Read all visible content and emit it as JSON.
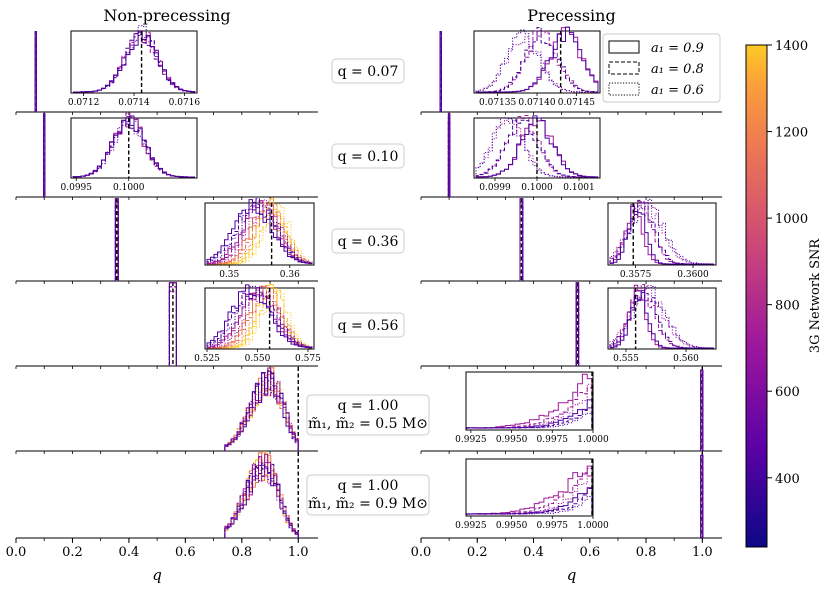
{
  "chart_data": {
    "type": "histogram",
    "columns": [
      {
        "title": "Non-precessing"
      },
      {
        "title": "Precessing"
      }
    ],
    "rows": [
      {
        "label_lines": [
          "q = 0.07"
        ],
        "true_q": 0.07,
        "left_inset": {
          "range": [
            0.07115,
            0.07165
          ],
          "truth": 0.07143,
          "ticks": [
            0.0712,
            0.0714,
            0.0716
          ],
          "tick_labels": [
            "0.0712",
            "0.0714",
            "0.0716"
          ]
        },
        "right_inset": {
          "range": [
            0.07132,
            0.07148
          ],
          "truth": 0.07143,
          "ticks": [
            0.07135,
            0.0714,
            0.07145
          ],
          "tick_labels": [
            "0.07135",
            "0.07140",
            "0.07145"
          ]
        }
      },
      {
        "label_lines": [
          "q = 0.10"
        ],
        "true_q": 0.1,
        "left_inset": {
          "range": [
            0.09945,
            0.10065
          ],
          "truth": 0.1,
          "ticks": [
            0.0995,
            0.1
          ],
          "tick_labels": [
            "0.0995",
            "0.1000"
          ]
        },
        "right_inset": {
          "range": [
            0.09985,
            0.10015
          ],
          "truth": 0.1,
          "ticks": [
            0.0999,
            0.1,
            0.1001
          ],
          "tick_labels": [
            "0.0999",
            "0.1000",
            "0.1001"
          ]
        }
      },
      {
        "label_lines": [
          "q = 0.36"
        ],
        "true_q": 0.357,
        "left_inset": {
          "range": [
            0.346,
            0.364
          ],
          "truth": 0.357,
          "ticks": [
            0.35,
            0.36
          ],
          "tick_labels": [
            "0.35",
            "0.36"
          ]
        },
        "right_inset": {
          "range": [
            0.3563,
            0.361
          ],
          "truth": 0.3574,
          "ticks": [
            0.3575,
            0.36
          ],
          "tick_labels": [
            "0.3575",
            "0.3600"
          ]
        }
      },
      {
        "label_lines": [
          "q = 0.56"
        ],
        "true_q": 0.556,
        "left_inset": {
          "range": [
            0.524,
            0.578
          ],
          "truth": 0.556,
          "ticks": [
            0.525,
            0.55,
            0.575
          ],
          "tick_labels": [
            "0.525",
            "0.550",
            "0.575"
          ]
        },
        "right_inset": {
          "range": [
            0.5535,
            0.5625
          ],
          "truth": 0.5558,
          "ticks": [
            0.555,
            0.56
          ],
          "tick_labels": [
            "0.555",
            "0.560"
          ]
        }
      },
      {
        "label_lines": [
          "q = 1.00",
          "m̃₁, m̃₂ = 0.5 M⊙"
        ],
        "true_q": 1.0,
        "right_inset": {
          "range": [
            0.9922,
            1.0
          ],
          "truth": 1.0,
          "ticks": [
            0.9925,
            0.995,
            0.9975,
            1.0
          ],
          "tick_labels": [
            "0.9925",
            "0.9950",
            "0.9975",
            "1.0000"
          ]
        }
      },
      {
        "label_lines": [
          "q = 1.00",
          "m̃₁, m̃₂ = 0.9 M⊙"
        ],
        "true_q": 1.0,
        "right_inset": {
          "range": [
            0.9922,
            1.0
          ],
          "truth": 1.0,
          "ticks": [
            0.9925,
            0.995,
            0.9975,
            1.0
          ],
          "tick_labels": [
            "0.9925",
            "0.9950",
            "0.9975",
            "1.0000"
          ]
        }
      }
    ],
    "x_axis": {
      "label": "q",
      "range": [
        0.0,
        1.07
      ],
      "ticks": [
        0.0,
        0.2,
        0.4,
        0.6,
        0.8,
        1.0
      ],
      "tick_labels": [
        "0.0",
        "0.2",
        "0.4",
        "0.6",
        "0.8",
        "1.0"
      ]
    },
    "legend": {
      "position": "top-right of precessing column",
      "entries": [
        {
          "label": "a₁ = 0.9",
          "linestyle": "solid"
        },
        {
          "label": "a₁ = 0.8",
          "linestyle": "dashed"
        },
        {
          "label": "a₁ = 0.6",
          "linestyle": "dotted"
        }
      ]
    },
    "colorbar": {
      "label": "3G Network SNR",
      "range": [
        240,
        1400
      ],
      "ticks": [
        400,
        600,
        800,
        1000,
        1200,
        1400
      ],
      "tick_labels": [
        "400",
        "600",
        "800",
        "1000",
        "1200",
        "1400"
      ],
      "colors": [
        "#0d0887",
        "#6a00a8",
        "#b12a90",
        "#e16462",
        "#fca636",
        "#f0f921"
      ]
    },
    "series_snr": [
      1400,
      1000,
      640,
      400
    ]
  }
}
